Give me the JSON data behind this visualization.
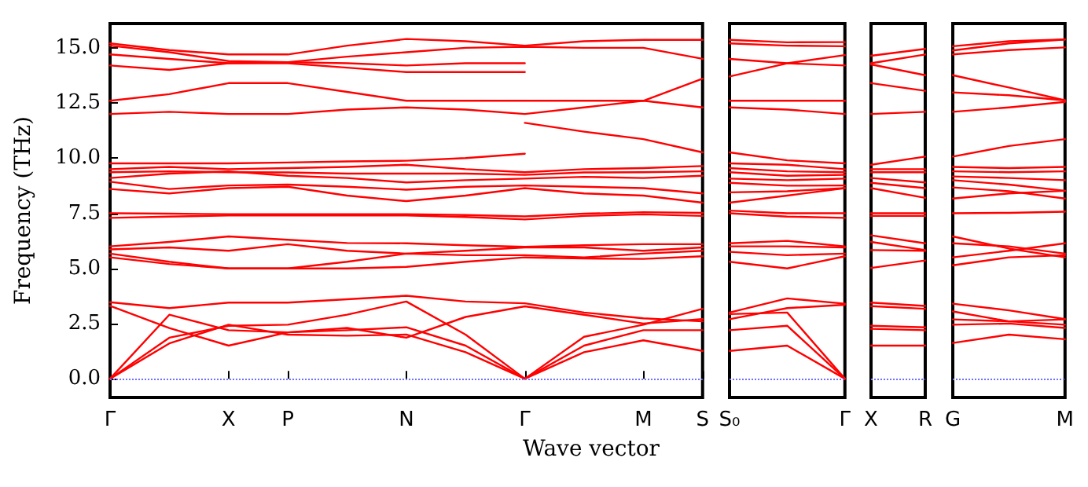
{
  "chart_data": [
    {
      "type": "line",
      "xlabel": "Wave vector",
      "ylabel": "Frequency (THz)",
      "ylim": [
        -0.85,
        16.1
      ],
      "categories": [
        "Γ",
        null,
        "X",
        "P",
        null,
        "N",
        null,
        "Γ",
        null,
        "M",
        "S"
      ],
      "yticks": [
        {
          "value": 0,
          "label": "0.0"
        },
        {
          "value": 2.5,
          "label": "2.5"
        },
        {
          "value": 5,
          "label": "5.0"
        },
        {
          "value": 7.5,
          "label": "7.5"
        },
        {
          "value": 10,
          "label": "10.0"
        },
        {
          "value": 12.5,
          "label": "12.5"
        },
        {
          "value": 15,
          "label": "15.0"
        }
      ],
      "ref_lines": [
        {
          "axis": "y",
          "value": 0,
          "color": "#7070ff",
          "line_style": "dotted"
        }
      ],
      "series": [
        {
          "color": "#ff0000",
          "values": [
            15.2,
            14.9,
            14.7,
            14.7,
            15.1,
            15.4,
            15.3,
            15.1,
            15.3,
            15.36,
            15.36
          ]
        },
        {
          "color": "#ff0000",
          "values": [
            15.1,
            14.8,
            14.4,
            14.35,
            14.6,
            14.8,
            15.0,
            15.05,
            15.0,
            15.0,
            14.5
          ]
        },
        {
          "color": "#ff0000",
          "values": [
            14.7,
            14.5,
            14.3,
            14.35,
            14.3,
            14.2,
            14.3,
            14.3,
            null,
            null,
            null
          ]
        },
        {
          "color": "#ff0000",
          "values": [
            14.2,
            14.0,
            14.3,
            14.3,
            14.1,
            13.9,
            13.9,
            13.9,
            null,
            null,
            null
          ]
        },
        {
          "color": "#ff0000",
          "values": [
            12.6,
            12.9,
            13.4,
            13.4,
            13.0,
            12.6,
            12.6,
            12.6,
            12.6,
            12.6,
            13.6
          ]
        },
        {
          "color": "#ff0000",
          "values": [
            12.0,
            12.1,
            12.0,
            12.0,
            12.2,
            12.3,
            12.2,
            12.0,
            12.3,
            12.6,
            12.3
          ]
        },
        {
          "color": "#ff0000",
          "values": [
            9.76,
            9.76,
            9.76,
            9.8,
            9.85,
            9.88,
            10.0,
            10.2,
            null,
            null,
            null
          ]
        },
        {
          "color": "#ff0000",
          "values": [
            null,
            null,
            null,
            null,
            null,
            null,
            null,
            11.6,
            11.2,
            10.86,
            10.26
          ]
        },
        {
          "color": "#ff0000",
          "values": [
            9.5,
            9.6,
            9.5,
            9.55,
            9.6,
            9.7,
            9.5,
            9.36,
            9.5,
            9.55,
            9.64
          ]
        },
        {
          "color": "#ff0000",
          "values": [
            9.36,
            9.4,
            9.36,
            9.35,
            9.3,
            9.3,
            9.3,
            9.24,
            9.35,
            9.36,
            9.4
          ]
        },
        {
          "color": "#ff0000",
          "values": [
            9.1,
            9.3,
            9.4,
            9.2,
            9.1,
            8.9,
            9.0,
            9.07,
            9.15,
            9.1,
            9.2
          ]
        },
        {
          "color": "#ff0000",
          "values": [
            8.93,
            8.6,
            8.76,
            8.8,
            8.7,
            8.57,
            8.7,
            8.76,
            8.7,
            8.64,
            8.4
          ]
        },
        {
          "color": "#ff0000",
          "values": [
            8.6,
            8.4,
            8.64,
            8.7,
            8.3,
            8.05,
            8.3,
            8.64,
            8.4,
            8.3,
            7.98
          ]
        },
        {
          "color": "#ff0000",
          "values": [
            7.5,
            7.48,
            7.46,
            7.46,
            7.46,
            7.46,
            7.42,
            7.36,
            7.48,
            7.55,
            7.52
          ]
        },
        {
          "color": "#ff0000",
          "values": [
            7.29,
            7.35,
            7.4,
            7.4,
            7.4,
            7.4,
            7.33,
            7.22,
            7.38,
            7.45,
            7.38
          ]
        },
        {
          "color": "#ff0000",
          "values": [
            6.0,
            6.2,
            6.45,
            6.3,
            6.15,
            6.14,
            6.05,
            5.98,
            6.05,
            6.1,
            6.1
          ]
        },
        {
          "color": "#ff0000",
          "values": [
            5.86,
            5.95,
            5.8,
            6.1,
            5.8,
            5.67,
            5.8,
            5.95,
            5.95,
            5.8,
            5.95
          ]
        },
        {
          "color": "#ff0000",
          "values": [
            5.67,
            5.3,
            5.0,
            5.0,
            5.3,
            5.67,
            5.6,
            5.6,
            5.5,
            5.67,
            5.8
          ]
        },
        {
          "color": "#ff0000",
          "values": [
            5.5,
            5.2,
            5.0,
            5.0,
            5.0,
            5.07,
            5.3,
            5.5,
            5.45,
            5.43,
            5.55
          ]
        },
        {
          "color": "#ff0000",
          "values": [
            3.47,
            3.2,
            3.45,
            3.45,
            3.6,
            3.76,
            3.5,
            3.42,
            3.0,
            2.74,
            2.6
          ]
        },
        {
          "color": "#ff0000",
          "values": [
            3.3,
            2.3,
            1.5,
            2.1,
            2.3,
            1.86,
            2.8,
            3.28,
            2.9,
            2.5,
            2.7
          ]
        },
        {
          "color": "#ff0000",
          "values": [
            0,
            2.9,
            2.2,
            2.1,
            2.2,
            2.33,
            1.5,
            0,
            1.9,
            2.45,
            3.17
          ]
        },
        {
          "color": "#ff0000",
          "values": [
            0,
            1.86,
            2.4,
            2.45,
            2.9,
            3.5,
            2.0,
            0,
            1.5,
            2.2,
            2.2
          ]
        },
        {
          "color": "#ff0000",
          "values": [
            0,
            1.6,
            2.45,
            2.0,
            1.95,
            2.0,
            1.2,
            0,
            1.2,
            1.74,
            1.26
          ]
        }
      ]
    },
    {
      "type": "line",
      "ylim": [
        -0.85,
        16.1
      ],
      "tick_labels": "x",
      "categories": [
        "S₀",
        null,
        "Γ"
      ],
      "ref_lines": [
        {
          "axis": "y",
          "value": 0,
          "color": "#7070ff",
          "line_style": "dotted"
        }
      ],
      "series": [
        {
          "color": "#ff0000",
          "values": [
            15.36,
            15.25,
            15.26
          ]
        },
        {
          "color": "#ff0000",
          "values": [
            15.2,
            15.1,
            15.07
          ]
        },
        {
          "color": "#ff0000",
          "values": [
            14.5,
            14.3,
            14.2
          ]
        },
        {
          "color": "#ff0000",
          "values": [
            13.7,
            14.3,
            14.67
          ]
        },
        {
          "color": "#ff0000",
          "values": [
            12.6,
            12.6,
            12.6
          ]
        },
        {
          "color": "#ff0000",
          "values": [
            12.3,
            12.2,
            12.0
          ]
        },
        {
          "color": "#ff0000",
          "values": [
            10.26,
            9.9,
            9.76
          ]
        },
        {
          "color": "#ff0000",
          "values": [
            9.76,
            9.7,
            9.5
          ]
        },
        {
          "color": "#ff0000",
          "values": [
            9.55,
            9.4,
            9.36
          ]
        },
        {
          "color": "#ff0000",
          "values": [
            9.36,
            9.2,
            9.24
          ]
        },
        {
          "color": "#ff0000",
          "values": [
            9.07,
            9.0,
            9.07
          ]
        },
        {
          "color": "#ff0000",
          "values": [
            8.88,
            8.75,
            8.76
          ]
        },
        {
          "color": "#ff0000",
          "values": [
            8.45,
            8.5,
            8.64
          ]
        },
        {
          "color": "#ff0000",
          "values": [
            7.98,
            8.3,
            8.64
          ]
        },
        {
          "color": "#ff0000",
          "values": [
            7.62,
            7.5,
            7.5
          ]
        },
        {
          "color": "#ff0000",
          "values": [
            7.5,
            7.35,
            7.29
          ]
        },
        {
          "color": "#ff0000",
          "values": [
            6.14,
            6.25,
            6.0
          ]
        },
        {
          "color": "#ff0000",
          "values": [
            6.0,
            6.0,
            5.95
          ]
        },
        {
          "color": "#ff0000",
          "values": [
            5.75,
            5.6,
            5.67
          ]
        },
        {
          "color": "#ff0000",
          "values": [
            5.3,
            5.0,
            5.55
          ]
        },
        {
          "color": "#ff0000",
          "values": [
            3.0,
            3.64,
            3.4
          ]
        },
        {
          "color": "#ff0000",
          "values": [
            2.7,
            3.2,
            3.35
          ]
        },
        {
          "color": "#ff0000",
          "values": [
            2.93,
            3.0,
            0
          ]
        },
        {
          "color": "#ff0000",
          "values": [
            2.2,
            2.4,
            0
          ]
        },
        {
          "color": "#ff0000",
          "values": [
            1.26,
            1.5,
            0
          ]
        }
      ]
    },
    {
      "type": "line",
      "ylim": [
        -0.85,
        16.1
      ],
      "tick_labels": "x",
      "categories": [
        "X",
        "R"
      ],
      "ref_lines": [
        {
          "axis": "y",
          "value": 0,
          "color": "#7070ff",
          "line_style": "dotted"
        }
      ],
      "series": [
        {
          "color": "#ff0000",
          "values": [
            14.64,
            14.95
          ]
        },
        {
          "color": "#ff0000",
          "values": [
            14.3,
            14.7
          ]
        },
        {
          "color": "#ff0000",
          "values": [
            14.25,
            13.76
          ]
        },
        {
          "color": "#ff0000",
          "values": [
            13.4,
            13.05
          ]
        },
        {
          "color": "#ff0000",
          "values": [
            12.0,
            12.1
          ]
        },
        {
          "color": "#ff0000",
          "values": [
            9.7,
            10.07
          ]
        },
        {
          "color": "#ff0000",
          "values": [
            9.5,
            9.5
          ]
        },
        {
          "color": "#ff0000",
          "values": [
            9.36,
            9.36
          ]
        },
        {
          "color": "#ff0000",
          "values": [
            9.1,
            8.9
          ]
        },
        {
          "color": "#ff0000",
          "values": [
            8.88,
            8.64
          ]
        },
        {
          "color": "#ff0000",
          "values": [
            8.64,
            8.2
          ]
        },
        {
          "color": "#ff0000",
          "values": [
            7.5,
            7.5
          ]
        },
        {
          "color": "#ff0000",
          "values": [
            7.38,
            7.38
          ]
        },
        {
          "color": "#ff0000",
          "values": [
            6.5,
            6.14
          ]
        },
        {
          "color": "#ff0000",
          "values": [
            6.2,
            5.83
          ]
        },
        {
          "color": "#ff0000",
          "values": [
            5.83,
            5.8
          ]
        },
        {
          "color": "#ff0000",
          "values": [
            5.02,
            5.36
          ]
        },
        {
          "color": "#ff0000",
          "values": [
            3.45,
            3.3
          ]
        },
        {
          "color": "#ff0000",
          "values": [
            3.29,
            3.17
          ]
        },
        {
          "color": "#ff0000",
          "values": [
            2.4,
            2.33
          ]
        },
        {
          "color": "#ff0000",
          "values": [
            2.26,
            2.2
          ]
        },
        {
          "color": "#ff0000",
          "values": [
            1.5,
            1.5
          ]
        }
      ]
    },
    {
      "type": "line",
      "ylim": [
        -0.85,
        16.1
      ],
      "tick_labels": "x",
      "categories": [
        "G",
        null,
        "M"
      ],
      "ref_lines": [
        {
          "axis": "y",
          "value": 0,
          "color": "#7070ff",
          "line_style": "dotted"
        }
      ],
      "series": [
        {
          "color": "#ff0000",
          "values": [
            15.07,
            15.3,
            15.38
          ]
        },
        {
          "color": "#ff0000",
          "values": [
            14.88,
            15.2,
            15.38
          ]
        },
        {
          "color": "#ff0000",
          "values": [
            14.7,
            14.9,
            15.02
          ]
        },
        {
          "color": "#ff0000",
          "values": [
            13.76,
            13.2,
            12.62
          ]
        },
        {
          "color": "#ff0000",
          "values": [
            12.98,
            12.85,
            12.62
          ]
        },
        {
          "color": "#ff0000",
          "values": [
            12.1,
            12.3,
            12.55
          ]
        },
        {
          "color": "#ff0000",
          "values": [
            10.07,
            10.55,
            10.86
          ]
        },
        {
          "color": "#ff0000",
          "values": [
            9.6,
            9.55,
            9.6
          ]
        },
        {
          "color": "#ff0000",
          "values": [
            9.4,
            9.36,
            9.4
          ]
        },
        {
          "color": "#ff0000",
          "values": [
            9.17,
            9.1,
            9.0
          ]
        },
        {
          "color": "#ff0000",
          "values": [
            9.0,
            8.8,
            8.52
          ]
        },
        {
          "color": "#ff0000",
          "values": [
            8.67,
            8.5,
            8.17
          ]
        },
        {
          "color": "#ff0000",
          "values": [
            8.17,
            8.4,
            8.52
          ]
        },
        {
          "color": "#ff0000",
          "values": [
            7.5,
            7.52,
            7.57
          ]
        },
        {
          "color": "#ff0000",
          "values": [
            6.45,
            5.9,
            5.5
          ]
        },
        {
          "color": "#ff0000",
          "values": [
            6.14,
            6.0,
            5.67
          ]
        },
        {
          "color": "#ff0000",
          "values": [
            5.5,
            5.8,
            6.14
          ]
        },
        {
          "color": "#ff0000",
          "values": [
            5.14,
            5.5,
            5.6
          ]
        },
        {
          "color": "#ff0000",
          "values": [
            3.4,
            3.1,
            2.7
          ]
        },
        {
          "color": "#ff0000",
          "values": [
            3.05,
            2.6,
            2.45
          ]
        },
        {
          "color": "#ff0000",
          "values": [
            2.69,
            2.6,
            2.69
          ]
        },
        {
          "color": "#ff0000",
          "values": [
            2.45,
            2.5,
            2.3
          ]
        },
        {
          "color": "#ff0000",
          "values": [
            1.62,
            2.0,
            1.79
          ]
        }
      ]
    }
  ]
}
